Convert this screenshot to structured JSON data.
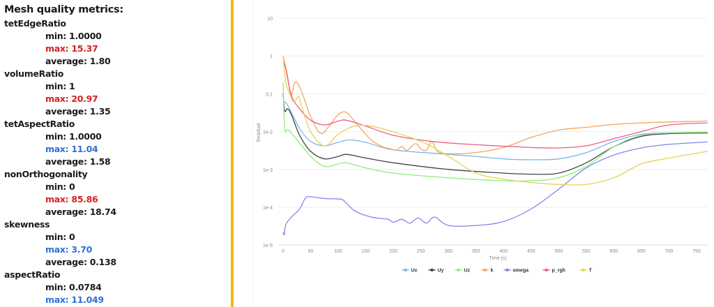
{
  "metrics_panel": {
    "title": "Mesh quality metrics:",
    "groups": [
      {
        "name": "tetEdgeRatio",
        "stats": [
          {
            "label": "min: 1.0000",
            "status": "normal"
          },
          {
            "label": "max: 15.37",
            "status": "bad"
          },
          {
            "label": "average: 1.80",
            "status": "normal"
          }
        ]
      },
      {
        "name": "volumeRatio",
        "stats": [
          {
            "label": "min: 1",
            "status": "normal"
          },
          {
            "label": "max: 20.97",
            "status": "bad"
          },
          {
            "label": "average: 1.35",
            "status": "normal"
          }
        ]
      },
      {
        "name": "tetAspectRatio",
        "stats": [
          {
            "label": "min: 1.0000",
            "status": "normal"
          },
          {
            "label": "max: 11.04",
            "status": "warn"
          },
          {
            "label": "average: 1.58",
            "status": "normal"
          }
        ]
      },
      {
        "name": "nonOrthogonality",
        "stats": [
          {
            "label": "min: 0",
            "status": "normal"
          },
          {
            "label": "max: 85.86",
            "status": "bad"
          },
          {
            "label": "average: 18.74",
            "status": "normal"
          }
        ]
      },
      {
        "name": "skewness",
        "stats": [
          {
            "label": "min: 0",
            "status": "normal"
          },
          {
            "label": "max: 3.70",
            "status": "warn"
          },
          {
            "label": "average: 0.138",
            "status": "normal"
          }
        ]
      },
      {
        "name": "aspectRatio",
        "stats": [
          {
            "label": "min: 0.0784",
            "status": "normal"
          },
          {
            "label": "max: 11.049",
            "status": "warn"
          }
        ]
      }
    ],
    "colors": {
      "normal": "#1a1a1a",
      "bad": "#d42020",
      "warn": "#2f6fd8",
      "divider": "#f5b800"
    }
  },
  "chart_data": {
    "type": "line",
    "title": "",
    "xlabel": "Time (s)",
    "ylabel": "Residual",
    "yscale": "log",
    "ylim": [
      1e-05,
      10
    ],
    "xlim": [
      0,
      770
    ],
    "grid": true,
    "legend_position": "bottom",
    "yticks": [
      "10",
      "1",
      "0.1",
      "1e-2",
      "1e-3",
      "1e-4",
      "1e-5"
    ],
    "xticks": [
      "0",
      "50",
      "100",
      "150",
      "200",
      "250",
      "300",
      "350",
      "400",
      "450",
      "500",
      "550",
      "600",
      "650",
      "700",
      "750"
    ],
    "series": [
      {
        "name": "Ux",
        "color": "#7cb5ec",
        "points": [
          [
            0,
            0.05
          ],
          [
            3,
            0.06
          ],
          [
            10,
            0.045
          ],
          [
            30,
            0.012
          ],
          [
            50,
            0.0055
          ],
          [
            75,
            0.0042
          ],
          [
            100,
            0.0052
          ],
          [
            120,
            0.006
          ],
          [
            150,
            0.0052
          ],
          [
            200,
            0.0033
          ],
          [
            300,
            0.0025
          ],
          [
            350,
            0.0022
          ],
          [
            400,
            0.0019
          ],
          [
            450,
            0.0018
          ],
          [
            500,
            0.0019
          ],
          [
            550,
            0.0028
          ],
          [
            600,
            0.0055
          ],
          [
            650,
            0.0085
          ],
          [
            700,
            0.0093
          ],
          [
            770,
            0.0095
          ]
        ]
      },
      {
        "name": "Uy",
        "color": "#434348",
        "points": [
          [
            0,
            0.1
          ],
          [
            3,
            0.035
          ],
          [
            8,
            0.04
          ],
          [
            15,
            0.028
          ],
          [
            30,
            0.008
          ],
          [
            50,
            0.003
          ],
          [
            75,
            0.0019
          ],
          [
            100,
            0.0022
          ],
          [
            115,
            0.0025
          ],
          [
            150,
            0.002
          ],
          [
            200,
            0.0015
          ],
          [
            300,
            0.001
          ],
          [
            400,
            0.0008
          ],
          [
            450,
            0.00075
          ],
          [
            500,
            0.0008
          ],
          [
            550,
            0.0015
          ],
          [
            600,
            0.004
          ],
          [
            650,
            0.0075
          ],
          [
            700,
            0.0088
          ],
          [
            770,
            0.0092
          ]
        ]
      },
      {
        "name": "Uz",
        "color": "#90ed7d",
        "points": [
          [
            0,
            0.2
          ],
          [
            3,
            0.012
          ],
          [
            10,
            0.011
          ],
          [
            30,
            0.005
          ],
          [
            50,
            0.0022
          ],
          [
            75,
            0.0012
          ],
          [
            100,
            0.0014
          ],
          [
            115,
            0.0015
          ],
          [
            150,
            0.0011
          ],
          [
            200,
            0.0008
          ],
          [
            300,
            0.0006
          ],
          [
            400,
            0.0005
          ],
          [
            450,
            0.0005
          ],
          [
            500,
            0.0006
          ],
          [
            550,
            0.0012
          ],
          [
            600,
            0.004
          ],
          [
            650,
            0.008
          ],
          [
            700,
            0.0092
          ],
          [
            770,
            0.0096
          ]
        ]
      },
      {
        "name": "k",
        "color": "#f7a35c",
        "points": [
          [
            0,
            1.0
          ],
          [
            8,
            0.3
          ],
          [
            14,
            0.09
          ],
          [
            20,
            0.18
          ],
          [
            25,
            0.2
          ],
          [
            35,
            0.1
          ],
          [
            50,
            0.025
          ],
          [
            68,
            0.009
          ],
          [
            85,
            0.015
          ],
          [
            100,
            0.028
          ],
          [
            115,
            0.032
          ],
          [
            135,
            0.015
          ],
          [
            160,
            0.006
          ],
          [
            180,
            0.004
          ],
          [
            195,
            0.0035
          ],
          [
            205,
            0.0032
          ],
          [
            215,
            0.004
          ],
          [
            225,
            0.0032
          ],
          [
            240,
            0.0048
          ],
          [
            250,
            0.0035
          ],
          [
            260,
            0.0032
          ],
          [
            270,
            0.0055
          ],
          [
            280,
            0.003
          ],
          [
            300,
            0.0026
          ],
          [
            350,
            0.0028
          ],
          [
            400,
            0.0038
          ],
          [
            450,
            0.007
          ],
          [
            500,
            0.011
          ],
          [
            550,
            0.013
          ],
          [
            600,
            0.0155
          ],
          [
            650,
            0.017
          ],
          [
            700,
            0.018
          ],
          [
            770,
            0.019
          ]
        ]
      },
      {
        "name": "omega",
        "color": "#8085e9",
        "points": [
          [
            0,
            2.2e-05
          ],
          [
            2,
            1.9e-05
          ],
          [
            5,
            3.5e-05
          ],
          [
            15,
            5.5e-05
          ],
          [
            30,
            9e-05
          ],
          [
            40,
            0.00017
          ],
          [
            48,
            0.00019
          ],
          [
            75,
            0.00017
          ],
          [
            100,
            0.000165
          ],
          [
            110,
            0.00015
          ],
          [
            130,
            8e-05
          ],
          [
            160,
            5.5e-05
          ],
          [
            190,
            4.8e-05
          ],
          [
            200,
            4e-05
          ],
          [
            215,
            4.8e-05
          ],
          [
            230,
            3.8e-05
          ],
          [
            245,
            5.2e-05
          ],
          [
            260,
            3.8e-05
          ],
          [
            275,
            5.5e-05
          ],
          [
            300,
            3.3e-05
          ],
          [
            350,
            3.3e-05
          ],
          [
            400,
            4.2e-05
          ],
          [
            450,
            9e-05
          ],
          [
            500,
            0.0003
          ],
          [
            550,
            0.0011
          ],
          [
            600,
            0.0024
          ],
          [
            650,
            0.0037
          ],
          [
            700,
            0.0046
          ],
          [
            770,
            0.0053
          ]
        ]
      },
      {
        "name": "p_rgh",
        "color": "#f15c80",
        "points": [
          [
            0,
            0.7
          ],
          [
            5,
            0.45
          ],
          [
            15,
            0.09
          ],
          [
            30,
            0.04
          ],
          [
            50,
            0.02
          ],
          [
            75,
            0.015
          ],
          [
            100,
            0.019
          ],
          [
            115,
            0.02
          ],
          [
            150,
            0.014
          ],
          [
            200,
            0.008
          ],
          [
            270,
            0.0055
          ],
          [
            350,
            0.0045
          ],
          [
            450,
            0.0038
          ],
          [
            500,
            0.0037
          ],
          [
            550,
            0.0042
          ],
          [
            600,
            0.0065
          ],
          [
            650,
            0.01
          ],
          [
            700,
            0.015
          ],
          [
            770,
            0.017
          ]
        ]
      },
      {
        "name": "T",
        "color": "#e4d354",
        "points": [
          [
            0,
            1.0
          ],
          [
            5,
            0.2
          ],
          [
            12,
            0.1
          ],
          [
            20,
            0.06
          ],
          [
            28,
            0.085
          ],
          [
            35,
            0.04
          ],
          [
            50,
            0.01
          ],
          [
            75,
            0.0042
          ],
          [
            100,
            0.0085
          ],
          [
            130,
            0.014
          ],
          [
            170,
            0.013
          ],
          [
            250,
            0.0055
          ],
          [
            300,
            0.0022
          ],
          [
            350,
            0.0008
          ],
          [
            400,
            0.00055
          ],
          [
            450,
            0.00045
          ],
          [
            500,
            0.0004
          ],
          [
            550,
            0.0004
          ],
          [
            600,
            0.0006
          ],
          [
            650,
            0.0014
          ],
          [
            700,
            0.002
          ],
          [
            770,
            0.003
          ]
        ]
      }
    ]
  }
}
